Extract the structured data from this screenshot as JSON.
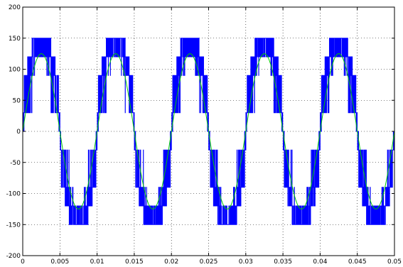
{
  "chart_data": {
    "type": "line",
    "title": "",
    "xlabel": "",
    "ylabel": "",
    "xlim": [
      0,
      0.05
    ],
    "ylim": [
      -200,
      200
    ],
    "grid": true,
    "xticks": [
      0,
      0.005,
      0.01,
      0.015,
      0.02,
      0.025,
      0.03,
      0.035,
      0.04,
      0.045,
      0.05
    ],
    "xtick_labels": [
      "0",
      "0.005",
      "0.01",
      "0.015",
      "0.02",
      "0.025",
      "0.03",
      "0.035",
      "0.04",
      "0.045",
      "0.05"
    ],
    "yticks": [
      -200,
      -150,
      -100,
      -50,
      0,
      50,
      100,
      150,
      200
    ],
    "ytick_labels": [
      "-200",
      "-150",
      "-100",
      "-50",
      "0",
      "50",
      "100",
      "150",
      "200"
    ],
    "fundamental_frequency_hz": 100,
    "series": [
      {
        "color": "#0000ff",
        "style": "multilevel-pwm",
        "peak": 150,
        "levels": [
          -150,
          -120,
          -90,
          -30,
          0,
          30,
          90,
          120,
          150
        ]
      },
      {
        "color": "#00cc00",
        "style": "sinusoid",
        "amplitude": 125,
        "frequency_hz": 100
      }
    ]
  }
}
